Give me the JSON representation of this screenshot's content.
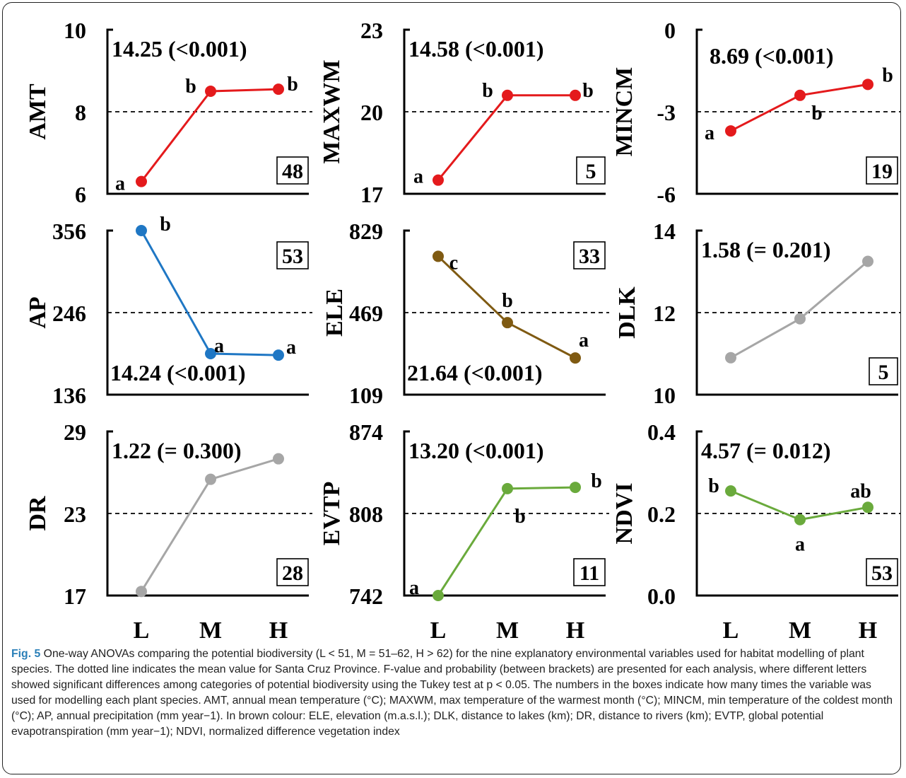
{
  "figure_label": "Fig. 5",
  "caption_text": " One-way ANOVAs comparing the potential biodiversity (L < 51, M = 51–62, H > 62) for the nine explanatory environmental variables used for habitat modelling of plant species. The dotted line indicates the mean value for Santa Cruz Province. F-value and probability (between brackets) are presented for each analysis, where different letters showed significant differences among categories of potential biodiversity using the Tukey test at p < 0.05. The numbers in the boxes indicate how many times the variable was used for modelling each plant species. AMT, annual mean temperature (°C); MAXWM, max temperature of the warmest month (°C); MINCM, min temperature of the coldest month (°C); AP, annual precipitation (mm year−1). In brown colour: ELE, elevation (m.a.s.l.); DLK, distance to lakes (km); DR, distance to rivers (km); EVTP, global potential evapotranspiration (mm year−1); NDVI, normalized difference vegetation index",
  "x_categories": [
    "L",
    "M",
    "H"
  ],
  "chart_data": [
    {
      "type": "line",
      "ylabel": "AMT",
      "ylim": [
        6,
        10
      ],
      "yticks": [
        "6",
        "8",
        "10"
      ],
      "mean": 8,
      "values": [
        6.3,
        8.5,
        8.55
      ],
      "letters": [
        "a",
        "b",
        "b"
      ],
      "stat": "14.25 (<0.001)",
      "count": "48",
      "color": "#e41a1c"
    },
    {
      "type": "line",
      "ylabel": "MAXWM",
      "ylim": [
        17,
        23
      ],
      "yticks": [
        "17",
        "20",
        "23"
      ],
      "mean": 20,
      "values": [
        17.5,
        20.6,
        20.6
      ],
      "letters": [
        "a",
        "b",
        "b"
      ],
      "stat": "14.58 (<0.001)",
      "count": "5",
      "color": "#e41a1c"
    },
    {
      "type": "line",
      "ylabel": "MINCM",
      "ylim": [
        -6,
        0
      ],
      "yticks": [
        "-6",
        "-3",
        "0"
      ],
      "mean": -3,
      "values": [
        -3.7,
        -2.4,
        -2.0
      ],
      "letters": [
        "a",
        "b",
        "b"
      ],
      "stat": "8.69 (<0.001)",
      "count": "19",
      "color": "#e41a1c"
    },
    {
      "type": "line",
      "ylabel": "AP",
      "ylim": [
        136,
        356
      ],
      "yticks": [
        "136",
        "246",
        "356"
      ],
      "mean": 246,
      "values": [
        356,
        191,
        189
      ],
      "letters": [
        "b",
        "a",
        "a"
      ],
      "stat": "14.24 (<0.001)",
      "count": "53",
      "color": "#1f77c4"
    },
    {
      "type": "line",
      "ylabel": "ELE",
      "ylim": [
        109,
        829
      ],
      "yticks": [
        "109",
        "469",
        "829"
      ],
      "mean": 469,
      "values": [
        716,
        425,
        270
      ],
      "letters": [
        "c",
        "b",
        "a"
      ],
      "stat": "21.64 (<0.001)",
      "count": "33",
      "color": "#7f5a12"
    },
    {
      "type": "line",
      "ylabel": "DLK",
      "ylim": [
        10,
        14
      ],
      "yticks": [
        "10",
        "12",
        "14"
      ],
      "mean": 12,
      "values": [
        10.9,
        11.85,
        13.25
      ],
      "letters": [
        "",
        "",
        ""
      ],
      "stat": "1.58 (= 0.201)",
      "count": "5",
      "color": "#a6a6a6"
    },
    {
      "type": "line",
      "ylabel": "DR",
      "ylim": [
        17,
        29
      ],
      "yticks": [
        "17",
        "23",
        "29"
      ],
      "mean": 23,
      "values": [
        17.3,
        25.5,
        27.0
      ],
      "letters": [
        "",
        "",
        ""
      ],
      "stat": "1.22 (= 0.300)",
      "count": "28",
      "color": "#a6a6a6"
    },
    {
      "type": "line",
      "ylabel": "EVTP",
      "ylim": [
        742,
        874
      ],
      "yticks": [
        "742",
        "808",
        "874"
      ],
      "mean": 808,
      "values": [
        742,
        828,
        829
      ],
      "letters": [
        "a",
        "b",
        "b"
      ],
      "stat": "13.20 (<0.001)",
      "count": "11",
      "color": "#6aaa3c"
    },
    {
      "type": "line",
      "ylabel": "NDVI",
      "ylim": [
        0.0,
        0.4
      ],
      "yticks": [
        "0.0",
        "0.2",
        "0.4"
      ],
      "mean": 0.2,
      "values": [
        0.255,
        0.185,
        0.215
      ],
      "letters": [
        "b",
        "a",
        "ab"
      ],
      "stat": "4.57 (= 0.012)",
      "count": "53",
      "color": "#6aaa3c"
    }
  ]
}
